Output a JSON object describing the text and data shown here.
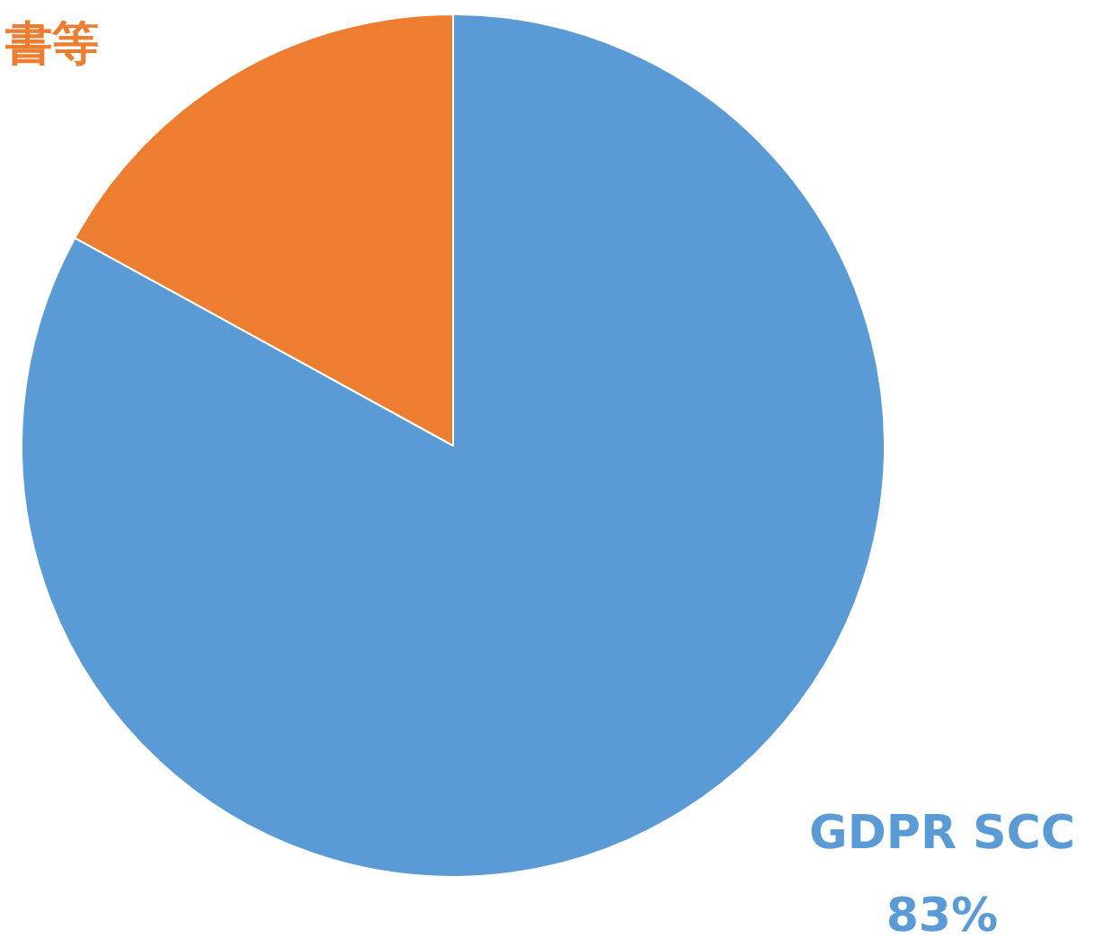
{
  "chart_data": {
    "type": "pie",
    "categories": [
      "GDPR SCC",
      "書等"
    ],
    "values": [
      83,
      17
    ],
    "colors": [
      "#5b9bd5",
      "#ed7d31"
    ],
    "value_labels": [
      "83%",
      null
    ]
  }
}
